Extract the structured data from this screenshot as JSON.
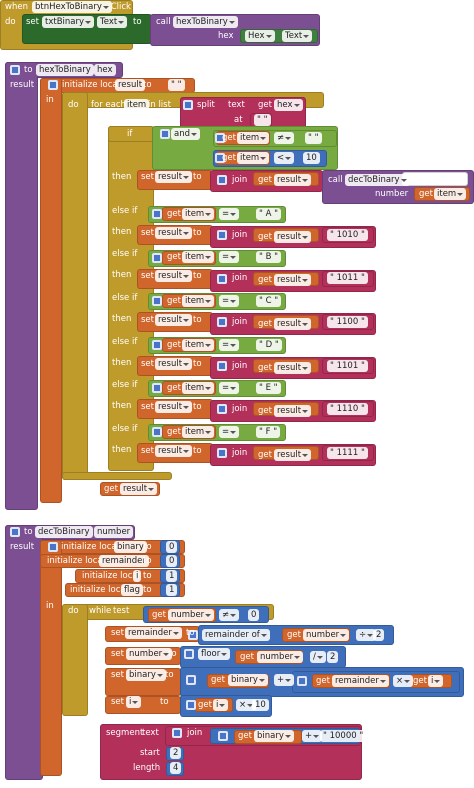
{
  "event": {
    "when": "when",
    "component": "btnHexToBinary",
    "event": ".Click",
    "do": "do",
    "set": "set",
    "target": "txtBinary",
    "property": "Text",
    "to": "to",
    "call": "call",
    "procedure": "hexToBinary",
    "param": "hex",
    "arg_component": "Hex",
    "arg_property": "Text"
  },
  "hex_to_binary": {
    "to": "to",
    "name": "hexToBinary",
    "param": "hex",
    "result": "result",
    "init": "initialize local",
    "var": "result",
    "empty": "\" \"",
    "in": "in",
    "do": "do",
    "for_each": "for each",
    "item": "item",
    "in_list": "in list",
    "split": "split",
    "text": "text",
    "get": "get",
    "at": "at",
    "if": "if",
    "and": "and",
    "neq": "≠",
    "lt": "<",
    "ten": 10,
    "then": "then",
    "set": "set",
    "join": "join",
    "call": "call",
    "dec_proc": "decToBinary",
    "number": "number",
    "else_if": "else if",
    "eq": "=",
    "cases": [
      {
        "letter": "\" A \"",
        "bits": "\" 1010 \""
      },
      {
        "letter": "\" B \"",
        "bits": "\" 1011 \""
      },
      {
        "letter": "\" C \"",
        "bits": "\" 1100 \""
      },
      {
        "letter": "\" D \"",
        "bits": "\" 1101 \""
      },
      {
        "letter": "\" E \"",
        "bits": "\" 1110 \""
      },
      {
        "letter": "\" F \"",
        "bits": "\" 1111 \""
      }
    ]
  },
  "dec_to_binary": {
    "to": "to",
    "name": "decToBinary",
    "param": "number",
    "result": "result",
    "init": "initialize local",
    "vars": [
      "binary",
      "remainder",
      "i",
      "flag"
    ],
    "init_values": [
      0,
      0,
      1,
      1
    ],
    "in": "in",
    "do": "do",
    "while": "while",
    "test": "test",
    "get": "get",
    "neq": "≠",
    "zero": 0,
    "set": "set",
    "remainder_of": "remainder of",
    "div": "÷",
    "two": 2,
    "floor": "floor",
    "slash": "/",
    "plus": "+",
    "times": "×",
    "ten": 10,
    "segment": "segment",
    "text": "text",
    "join": "join",
    "tenk": "\" 10000 \"",
    "start": "start",
    "start_value": 2,
    "length": "length",
    "length_value": 4
  }
}
